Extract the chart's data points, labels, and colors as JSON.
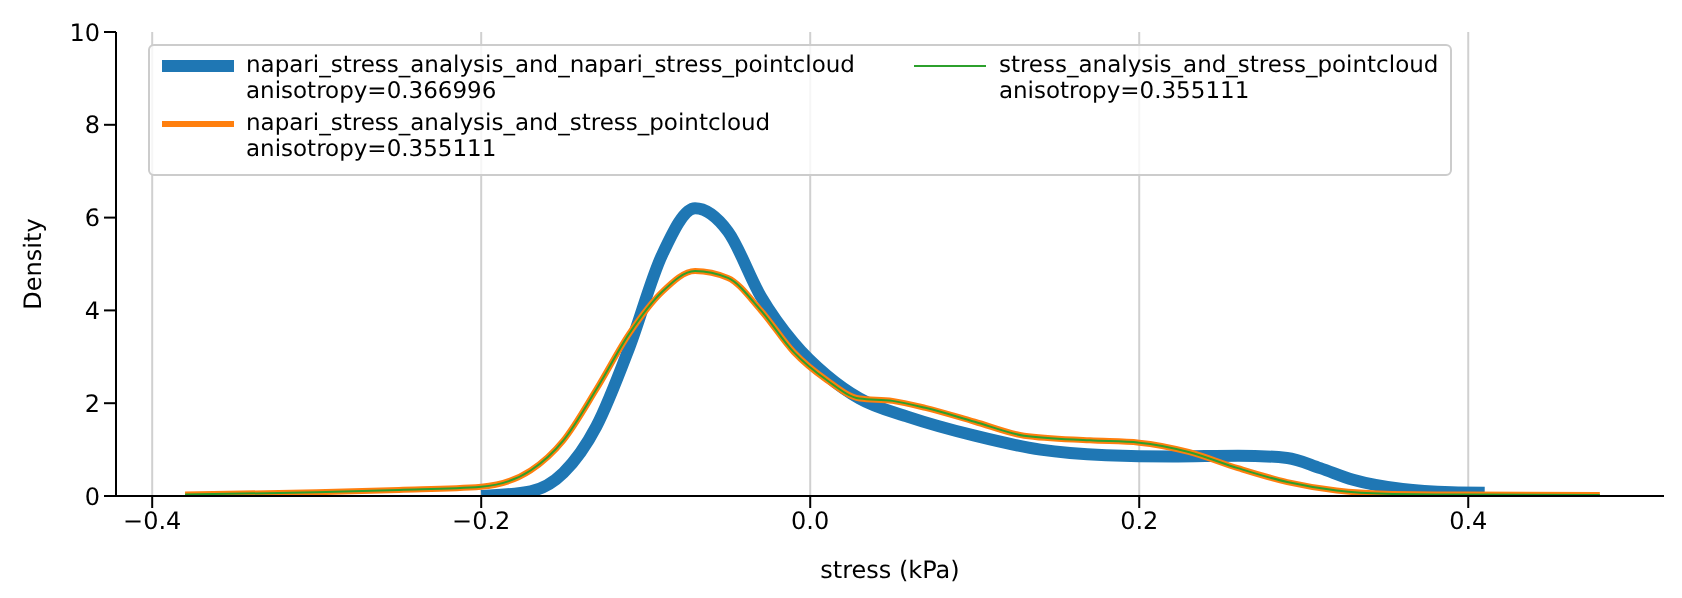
{
  "chart_data": {
    "type": "line",
    "xlabel": "stress (kPa)",
    "ylabel": "Density",
    "xlim": [
      -0.422,
      0.519
    ],
    "xticks": [
      {
        "value": -0.4,
        "label": "−0.4"
      },
      {
        "value": -0.2,
        "label": "−0.2"
      },
      {
        "value": 0,
        "label": "0.0"
      },
      {
        "value": 0.2,
        "label": "0.2"
      },
      {
        "value": 0.4,
        "label": "0.4"
      }
    ],
    "ylim": [
      0,
      10
    ],
    "yticks": [
      0,
      2,
      4,
      6,
      8,
      10
    ],
    "grid": "x",
    "legend": "top",
    "marker": "none",
    "line_style": "solid",
    "series": [
      {
        "name": "napari_stress_analysis_and_napari_stress_pointcloud\nanisotropy=0.366996",
        "color": "#1f77b4",
        "x": [
          -0.2,
          -0.17,
          -0.15,
          -0.13,
          -0.11,
          -0.09,
          -0.07,
          -0.05,
          -0.03,
          -0.01,
          0.01,
          0.03,
          0.06,
          0.1,
          0.14,
          0.18,
          0.22,
          0.26,
          0.29,
          0.31,
          0.33,
          0.36,
          0.39,
          0.41
        ],
        "values": [
          0,
          0.1,
          0.5,
          1.5,
          3.2,
          5.2,
          6.2,
          5.7,
          4.3,
          3.3,
          2.6,
          2.1,
          1.7,
          1.3,
          1.0,
          0.88,
          0.85,
          0.87,
          0.82,
          0.6,
          0.35,
          0.15,
          0.08,
          0.07
        ]
      },
      {
        "name": "napari_stress_analysis_and_stress_pointcloud\nanisotropy=0.355111",
        "color": "#ff7f0e",
        "x": [
          -0.38,
          -0.3,
          -0.25,
          -0.2,
          -0.17,
          -0.15,
          -0.13,
          -0.11,
          -0.09,
          -0.07,
          -0.05,
          -0.03,
          -0.01,
          0.01,
          0.03,
          0.05,
          0.07,
          0.1,
          0.13,
          0.17,
          0.2,
          0.23,
          0.26,
          0.29,
          0.32,
          0.35,
          0.4,
          0.48
        ],
        "values": [
          0.03,
          0.08,
          0.13,
          0.2,
          0.55,
          1.2,
          2.3,
          3.5,
          4.4,
          4.85,
          4.7,
          4.0,
          3.1,
          2.5,
          2.1,
          2.05,
          1.9,
          1.6,
          1.3,
          1.2,
          1.15,
          0.95,
          0.6,
          0.3,
          0.12,
          0.05,
          0.03,
          0.02
        ]
      },
      {
        "name": "stress_analysis_and_stress_pointcloud\nanisotropy=0.355111",
        "color": "#2ca02c",
        "x": [
          -0.38,
          -0.3,
          -0.25,
          -0.2,
          -0.17,
          -0.15,
          -0.13,
          -0.11,
          -0.09,
          -0.07,
          -0.05,
          -0.03,
          -0.01,
          0.01,
          0.03,
          0.05,
          0.07,
          0.1,
          0.13,
          0.17,
          0.2,
          0.23,
          0.26,
          0.29,
          0.32,
          0.35,
          0.4,
          0.48
        ],
        "values": [
          0.03,
          0.08,
          0.13,
          0.2,
          0.55,
          1.2,
          2.3,
          3.5,
          4.4,
          4.85,
          4.7,
          4.0,
          3.1,
          2.5,
          2.1,
          2.05,
          1.9,
          1.6,
          1.3,
          1.2,
          1.15,
          0.95,
          0.6,
          0.3,
          0.12,
          0.05,
          0.03,
          0.02
        ]
      }
    ]
  }
}
